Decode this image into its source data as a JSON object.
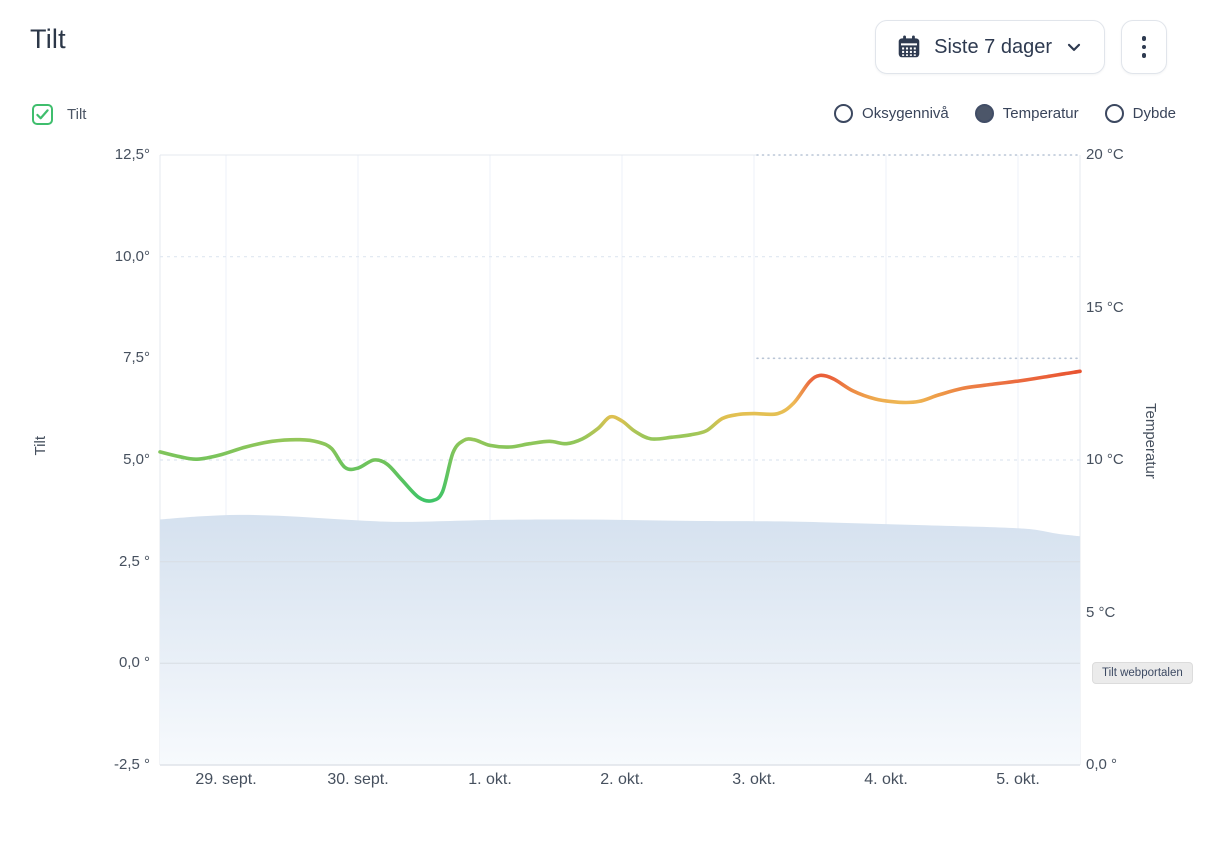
{
  "page": {
    "title": "Tilt"
  },
  "toolbar": {
    "date_range": {
      "label": "Siste 7 dager",
      "icon": "calendar-icon",
      "chevron_icon": "chevron-down-icon"
    },
    "menu": {
      "icon": "kebab-menu-icon"
    }
  },
  "legend": {
    "tilt_checkbox": {
      "label": "Tilt",
      "checked": true,
      "accent_color": "#3fbe6d"
    },
    "radios": [
      {
        "label": "Oksygennivå",
        "selected": false
      },
      {
        "label": "Temperatur",
        "selected": true
      },
      {
        "label": "Dybde",
        "selected": false
      }
    ]
  },
  "overlay": {
    "badge": "Tilt webportalen"
  },
  "chart_data": {
    "type": "line",
    "title": "Tilt",
    "x_axis": {
      "tick_labels": [
        "29. sept.",
        "30. sept.",
        "1. okt.",
        "2. okt.",
        "3. okt.",
        "4. okt.",
        "5. okt."
      ],
      "tick_days": [
        0,
        1,
        2,
        3,
        4,
        5,
        6
      ],
      "domain_days": [
        -0.5,
        6.47
      ]
    },
    "left_axis": {
      "label": "Tilt",
      "tick_labels": [
        "12,5°",
        "10,0°",
        "7,5°",
        "5,0°",
        "2,5 °",
        "0,0 °",
        "-2,5 °"
      ],
      "tick_values": [
        12.5,
        10,
        7.5,
        5,
        2.5,
        0,
        -2.5
      ],
      "range": [
        -2.5,
        12.5
      ]
    },
    "right_axis": {
      "label": "Temperatur",
      "tick_labels": [
        "20 °C",
        "15 °C",
        "10 °C",
        "5 °C",
        "0,0 °"
      ],
      "tick_values": [
        20,
        15,
        10,
        5,
        0
      ],
      "range": [
        0,
        20
      ]
    },
    "series": [
      {
        "name": "Tilt",
        "kind": "gradient-line",
        "axis": "left",
        "unit": "°",
        "points": [
          [
            -0.5,
            5.2
          ],
          [
            -0.35,
            5.08
          ],
          [
            -0.22,
            5.02
          ],
          [
            -0.05,
            5.12
          ],
          [
            0.15,
            5.32
          ],
          [
            0.35,
            5.46
          ],
          [
            0.56,
            5.5
          ],
          [
            0.7,
            5.44
          ],
          [
            0.8,
            5.28
          ],
          [
            0.9,
            4.82
          ],
          [
            1.0,
            4.8
          ],
          [
            1.12,
            5.0
          ],
          [
            1.22,
            4.9
          ],
          [
            1.33,
            4.52
          ],
          [
            1.46,
            4.08
          ],
          [
            1.56,
            4.0
          ],
          [
            1.64,
            4.22
          ],
          [
            1.72,
            5.18
          ],
          [
            1.8,
            5.48
          ],
          [
            1.88,
            5.5
          ],
          [
            2.0,
            5.36
          ],
          [
            2.15,
            5.32
          ],
          [
            2.3,
            5.4
          ],
          [
            2.45,
            5.46
          ],
          [
            2.58,
            5.4
          ],
          [
            2.7,
            5.52
          ],
          [
            2.82,
            5.78
          ],
          [
            2.91,
            6.06
          ],
          [
            3.0,
            5.96
          ],
          [
            3.1,
            5.7
          ],
          [
            3.22,
            5.52
          ],
          [
            3.38,
            5.56
          ],
          [
            3.52,
            5.62
          ],
          [
            3.64,
            5.72
          ],
          [
            3.76,
            6.02
          ],
          [
            3.88,
            6.12
          ],
          [
            4.0,
            6.14
          ],
          [
            4.18,
            6.14
          ],
          [
            4.3,
            6.4
          ],
          [
            4.42,
            6.92
          ],
          [
            4.5,
            7.08
          ],
          [
            4.6,
            7.0
          ],
          [
            4.75,
            6.7
          ],
          [
            4.92,
            6.5
          ],
          [
            5.1,
            6.42
          ],
          [
            5.25,
            6.44
          ],
          [
            5.4,
            6.6
          ],
          [
            5.58,
            6.76
          ],
          [
            5.8,
            6.86
          ],
          [
            6.0,
            6.94
          ],
          [
            6.2,
            7.04
          ],
          [
            6.35,
            7.12
          ],
          [
            6.47,
            7.18
          ]
        ],
        "value_color_scale": [
          [
            4.0,
            "#3ec468"
          ],
          [
            5.0,
            "#74c35b"
          ],
          [
            5.6,
            "#9ac75a"
          ],
          [
            6.0,
            "#ddc04f"
          ],
          [
            6.35,
            "#eec158"
          ],
          [
            6.6,
            "#ee9a47"
          ],
          [
            6.9,
            "#eb6f42"
          ],
          [
            7.2,
            "#e8512f"
          ]
        ]
      },
      {
        "name": "Temperatur",
        "kind": "area",
        "axis": "right",
        "unit": "°C",
        "points": [
          [
            -0.5,
            8.05
          ],
          [
            -0.2,
            8.15
          ],
          [
            0.1,
            8.2
          ],
          [
            0.4,
            8.17
          ],
          [
            0.7,
            8.1
          ],
          [
            1.0,
            8.02
          ],
          [
            1.3,
            7.97
          ],
          [
            1.7,
            8.0
          ],
          [
            2.1,
            8.04
          ],
          [
            2.6,
            8.05
          ],
          [
            3.1,
            8.03
          ],
          [
            3.6,
            8.0
          ],
          [
            4.1,
            7.99
          ],
          [
            4.5,
            7.96
          ],
          [
            4.9,
            7.91
          ],
          [
            5.3,
            7.86
          ],
          [
            5.7,
            7.81
          ],
          [
            6.0,
            7.76
          ],
          [
            6.15,
            7.7
          ],
          [
            6.3,
            7.58
          ],
          [
            6.42,
            7.52
          ],
          [
            6.47,
            7.5
          ]
        ],
        "fill_top": "#d5e1ef",
        "fill_bottom": "#f7fafd"
      }
    ],
    "style": {
      "grid_dash_color": "#dfe7f1",
      "grid_solid_color": "#d8dde3",
      "grid_vertical_color": "#eef2f8",
      "dotted_color": "#b9c5d6",
      "border_color": "#e4e8ef",
      "plot_bg": "#ffffff"
    }
  }
}
